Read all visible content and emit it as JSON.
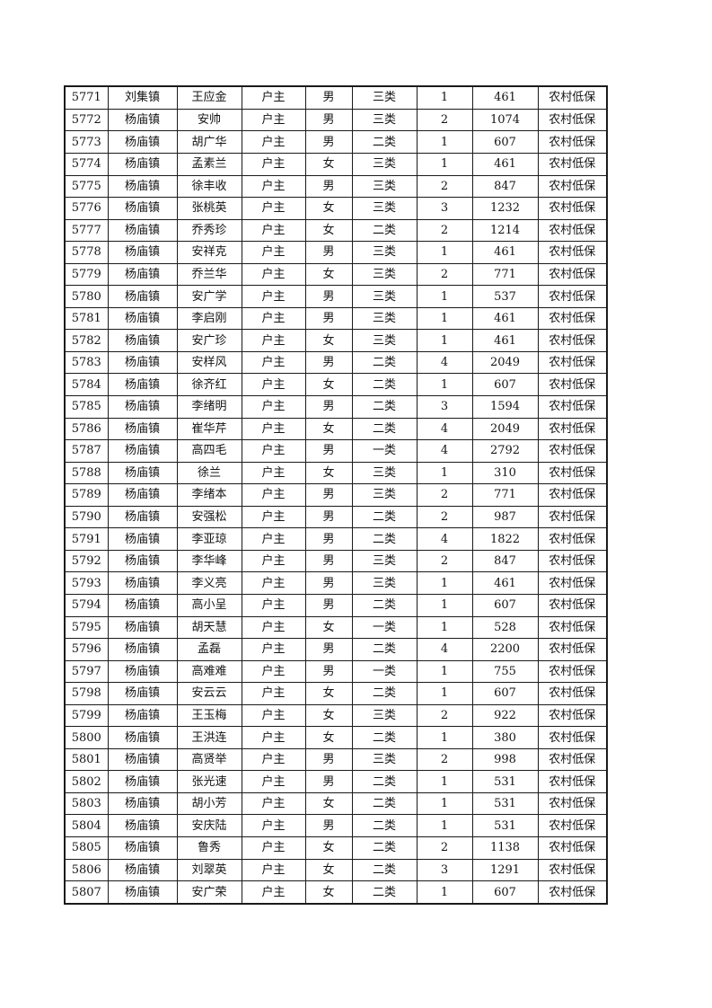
{
  "document": {
    "kind": "printed-subsidy-roster-page",
    "text_color": "#141414",
    "border_color": "#1a1a1a",
    "background_color": "#ffffff"
  },
  "table": {
    "column_names": [
      "serial",
      "town",
      "name",
      "relation",
      "gender",
      "category",
      "persons",
      "amount",
      "subsidy"
    ],
    "rows": [
      [
        "5771",
        "刘集镇",
        "王应金",
        "户主",
        "男",
        "三类",
        "1",
        "461",
        "农村低保"
      ],
      [
        "5772",
        "杨庙镇",
        "安帅",
        "户主",
        "男",
        "三类",
        "2",
        "1074",
        "农村低保"
      ],
      [
        "5773",
        "杨庙镇",
        "胡广华",
        "户主",
        "男",
        "二类",
        "1",
        "607",
        "农村低保"
      ],
      [
        "5774",
        "杨庙镇",
        "孟素兰",
        "户主",
        "女",
        "三类",
        "1",
        "461",
        "农村低保"
      ],
      [
        "5775",
        "杨庙镇",
        "徐丰收",
        "户主",
        "男",
        "三类",
        "2",
        "847",
        "农村低保"
      ],
      [
        "5776",
        "杨庙镇",
        "张桃英",
        "户主",
        "女",
        "三类",
        "3",
        "1232",
        "农村低保"
      ],
      [
        "5777",
        "杨庙镇",
        "乔秀珍",
        "户主",
        "女",
        "二类",
        "2",
        "1214",
        "农村低保"
      ],
      [
        "5778",
        "杨庙镇",
        "安祥克",
        "户主",
        "男",
        "三类",
        "1",
        "461",
        "农村低保"
      ],
      [
        "5779",
        "杨庙镇",
        "乔兰华",
        "户主",
        "女",
        "三类",
        "2",
        "771",
        "农村低保"
      ],
      [
        "5780",
        "杨庙镇",
        "安广学",
        "户主",
        "男",
        "三类",
        "1",
        "537",
        "农村低保"
      ],
      [
        "5781",
        "杨庙镇",
        "李启刚",
        "户主",
        "男",
        "三类",
        "1",
        "461",
        "农村低保"
      ],
      [
        "5782",
        "杨庙镇",
        "安广珍",
        "户主",
        "女",
        "三类",
        "1",
        "461",
        "农村低保"
      ],
      [
        "5783",
        "杨庙镇",
        "安样风",
        "户主",
        "男",
        "二类",
        "4",
        "2049",
        "农村低保"
      ],
      [
        "5784",
        "杨庙镇",
        "徐齐红",
        "户主",
        "女",
        "二类",
        "1",
        "607",
        "农村低保"
      ],
      [
        "5785",
        "杨庙镇",
        "李绪明",
        "户主",
        "男",
        "二类",
        "3",
        "1594",
        "农村低保"
      ],
      [
        "5786",
        "杨庙镇",
        "崔华芹",
        "户主",
        "女",
        "二类",
        "4",
        "2049",
        "农村低保"
      ],
      [
        "5787",
        "杨庙镇",
        "高四毛",
        "户主",
        "男",
        "一类",
        "4",
        "2792",
        "农村低保"
      ],
      [
        "5788",
        "杨庙镇",
        "徐兰",
        "户主",
        "女",
        "三类",
        "1",
        "310",
        "农村低保"
      ],
      [
        "5789",
        "杨庙镇",
        "李绪本",
        "户主",
        "男",
        "三类",
        "2",
        "771",
        "农村低保"
      ],
      [
        "5790",
        "杨庙镇",
        "安强松",
        "户主",
        "男",
        "二类",
        "2",
        "987",
        "农村低保"
      ],
      [
        "5791",
        "杨庙镇",
        "李亚琼",
        "户主",
        "男",
        "二类",
        "4",
        "1822",
        "农村低保"
      ],
      [
        "5792",
        "杨庙镇",
        "李华峰",
        "户主",
        "男",
        "三类",
        "2",
        "847",
        "农村低保"
      ],
      [
        "5793",
        "杨庙镇",
        "李义亮",
        "户主",
        "男",
        "三类",
        "1",
        "461",
        "农村低保"
      ],
      [
        "5794",
        "杨庙镇",
        "高小呈",
        "户主",
        "男",
        "二类",
        "1",
        "607",
        "农村低保"
      ],
      [
        "5795",
        "杨庙镇",
        "胡天慧",
        "户主",
        "女",
        "一类",
        "1",
        "528",
        "农村低保"
      ],
      [
        "5796",
        "杨庙镇",
        "孟磊",
        "户主",
        "男",
        "二类",
        "4",
        "2200",
        "农村低保"
      ],
      [
        "5797",
        "杨庙镇",
        "高难难",
        "户主",
        "男",
        "一类",
        "1",
        "755",
        "农村低保"
      ],
      [
        "5798",
        "杨庙镇",
        "安云云",
        "户主",
        "女",
        "二类",
        "1",
        "607",
        "农村低保"
      ],
      [
        "5799",
        "杨庙镇",
        "王玉梅",
        "户主",
        "女",
        "三类",
        "2",
        "922",
        "农村低保"
      ],
      [
        "5800",
        "杨庙镇",
        "王洪连",
        "户主",
        "女",
        "二类",
        "1",
        "380",
        "农村低保"
      ],
      [
        "5801",
        "杨庙镇",
        "高贤举",
        "户主",
        "男",
        "三类",
        "2",
        "998",
        "农村低保"
      ],
      [
        "5802",
        "杨庙镇",
        "张光速",
        "户主",
        "男",
        "二类",
        "1",
        "531",
        "农村低保"
      ],
      [
        "5803",
        "杨庙镇",
        "胡小芳",
        "户主",
        "女",
        "二类",
        "1",
        "531",
        "农村低保"
      ],
      [
        "5804",
        "杨庙镇",
        "安庆陆",
        "户主",
        "男",
        "二类",
        "1",
        "531",
        "农村低保"
      ],
      [
        "5805",
        "杨庙镇",
        "鲁秀",
        "户主",
        "女",
        "二类",
        "2",
        "1138",
        "农村低保"
      ],
      [
        "5806",
        "杨庙镇",
        "刘翠英",
        "户主",
        "女",
        "二类",
        "3",
        "1291",
        "农村低保"
      ],
      [
        "5807",
        "杨庙镇",
        "安广荣",
        "户主",
        "女",
        "二类",
        "1",
        "607",
        "农村低保"
      ]
    ]
  }
}
